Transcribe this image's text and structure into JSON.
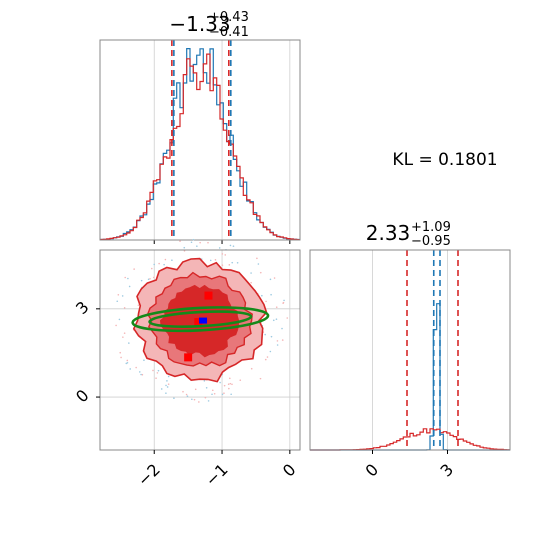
{
  "chart_data": [
    {
      "panel": "marginal-param1",
      "type": "histogram",
      "title": {
        "median": "−1.33",
        "plus": "+0.43",
        "minus": "−0.41"
      },
      "xlim": [
        -2.8,
        0.15
      ],
      "quantiles": {
        "red": [
          -1.74,
          -0.9
        ],
        "blue": [
          -1.74,
          -0.9
        ]
      },
      "series": [
        {
          "color": "#1f77b4",
          "center": -1.33,
          "sigma": 0.42,
          "scale": 0.93,
          "seed": 7
        },
        {
          "color": "#d62728",
          "center": -1.33,
          "sigma": 0.42,
          "scale": 0.9,
          "seed": 19
        }
      ]
    },
    {
      "panel": "joint",
      "type": "contour",
      "xlim": [
        -2.8,
        0.15
      ],
      "ylim": [
        -1.8,
        5.0
      ],
      "xticks": [
        {
          "value": -2,
          "label": "−2"
        },
        {
          "value": -1,
          "label": "−1"
        },
        {
          "value": 0,
          "label": "0"
        }
      ],
      "yticks": [
        {
          "value": 0,
          "label": "0"
        },
        {
          "value": 3,
          "label": "3"
        }
      ],
      "gridlines_x": [
        -2,
        -1,
        0
      ],
      "gridlines_y": [
        0,
        3
      ],
      "red_region": {
        "cx": -1.33,
        "cy": 2.6,
        "rx_outer": 0.93,
        "ry_outer": 2.0
      },
      "red_points": [
        [
          -1.2,
          3.45
        ],
        [
          -1.5,
          1.35
        ],
        [
          -1.35,
          2.55
        ]
      ],
      "blue_point": [
        -1.28,
        2.6
      ],
      "green_ellipses": [
        {
          "cx": -1.32,
          "cy": 2.65,
          "rx": 1.0,
          "ry": 0.38,
          "angle_deg": -3
        },
        {
          "cx": -1.32,
          "cy": 2.65,
          "rx": 0.75,
          "ry": 0.24,
          "angle_deg": -3
        }
      ]
    },
    {
      "panel": "marginal-param2",
      "type": "histogram",
      "title": {
        "median": "2.33",
        "plus": "+1.09",
        "minus": "−0.95"
      },
      "xlim": [
        -2.5,
        5.5
      ],
      "xticks": [
        {
          "value": 0,
          "label": "0"
        },
        {
          "value": 3,
          "label": "3"
        }
      ],
      "gridlines_x": [
        0,
        3
      ],
      "quantiles": {
        "red": [
          1.38,
          3.42
        ],
        "blue": [
          2.45,
          2.7
        ]
      },
      "series": [
        {
          "color": "#1f77b4",
          "center": 2.57,
          "sigma": 0.09,
          "scale": 0.97,
          "seed": 3
        },
        {
          "color": "#d62728",
          "center": 2.33,
          "sigma": 1.05,
          "scale": 0.1,
          "seed": 11
        }
      ]
    }
  ],
  "annotation": {
    "kl_text": "KL = 0.1801"
  },
  "colors": {
    "red": "#d62728",
    "blue": "#1f77b4",
    "green": "#138a1a",
    "red_light": "#f4b6b7",
    "red_mid": "#e8777a",
    "red_dark": "#d62728"
  }
}
